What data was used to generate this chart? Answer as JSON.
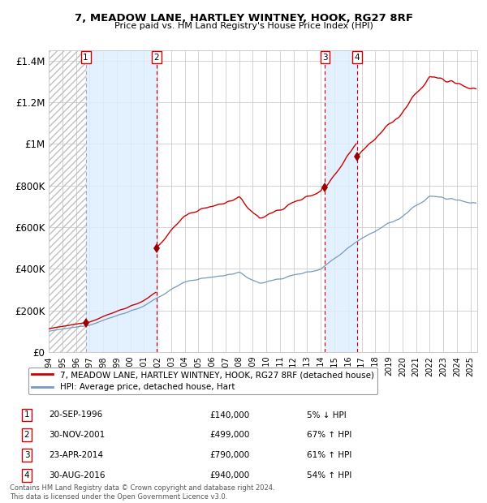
{
  "title1": "7, MEADOW LANE, HARTLEY WINTNEY, HOOK, RG27 8RF",
  "title2": "Price paid vs. HM Land Registry's House Price Index (HPI)",
  "ylim": [
    0,
    1450000
  ],
  "yticks": [
    0,
    200000,
    400000,
    600000,
    800000,
    1000000,
    1200000,
    1400000
  ],
  "ytick_labels": [
    "£0",
    "£200K",
    "£400K",
    "£600K",
    "£800K",
    "£1M",
    "£1.2M",
    "£1.4M"
  ],
  "xlim_start": 1994.0,
  "xlim_end": 2025.5,
  "sale_dates": [
    1996.72,
    2001.91,
    2014.31,
    2016.66
  ],
  "sale_prices": [
    140000,
    499000,
    790000,
    940000
  ],
  "sale_labels": [
    "1",
    "2",
    "3",
    "4"
  ],
  "sale_info": [
    {
      "num": "1",
      "date": "20-SEP-1996",
      "price": "£140,000",
      "hpi": "5% ↓ HPI"
    },
    {
      "num": "2",
      "date": "30-NOV-2001",
      "price": "£499,000",
      "hpi": "67% ↑ HPI"
    },
    {
      "num": "3",
      "date": "23-APR-2014",
      "price": "£790,000",
      "hpi": "61% ↑ HPI"
    },
    {
      "num": "4",
      "date": "30-AUG-2016",
      "price": "£940,000",
      "hpi": "54% ↑ HPI"
    }
  ],
  "red_line_color": "#cc0000",
  "blue_line_color": "#7799bb",
  "marker_color": "#990000",
  "vline_color": "#cc0000",
  "highlight_color": "#ddeeff",
  "grid_color": "#cccccc",
  "bg_color": "#ffffff",
  "legend_label_red": "7, MEADOW LANE, HARTLEY WINTNEY, HOOK, RG27 8RF (detached house)",
  "legend_label_blue": "HPI: Average price, detached house, Hart",
  "footnote": "Contains HM Land Registry data © Crown copyright and database right 2024.\nThis data is licensed under the Open Government Licence v3.0."
}
